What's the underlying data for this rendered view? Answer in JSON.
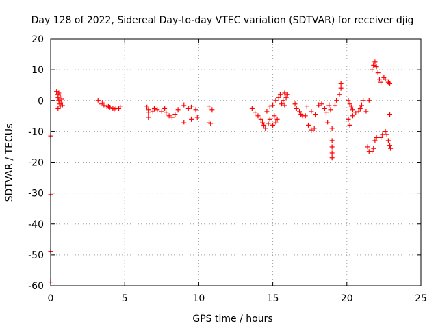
{
  "chart_data": {
    "type": "scatter",
    "title": "Day 128 of 2022, Sidereal Day-to-day VTEC variation (SDTVAR) for receiver djig",
    "xlabel": "GPS time / hours",
    "ylabel": "SDTVAR / TECUs",
    "xlim": [
      0,
      25
    ],
    "ylim": [
      -60,
      20
    ],
    "xticks": [
      "0",
      "5",
      "10",
      "15",
      "20",
      "25"
    ],
    "yticks": [
      "20",
      "10",
      "0",
      "-10",
      "-20",
      "-30",
      "-40",
      "-50",
      "-60"
    ],
    "grid": true,
    "marker": "plus",
    "color": "#ff0000",
    "series": [
      {
        "points": [
          [
            0.0,
            -11.5
          ],
          [
            0.0,
            -30.5
          ],
          [
            0.0,
            -49.0
          ],
          [
            0.0,
            -58.8
          ],
          [
            0.4,
            3.0
          ],
          [
            0.45,
            2.0
          ],
          [
            0.5,
            1.0
          ],
          [
            0.55,
            0.0
          ],
          [
            0.6,
            -1.0
          ],
          [
            0.65,
            -2.0
          ],
          [
            0.5,
            -2.5
          ],
          [
            0.7,
            -0.5
          ],
          [
            0.75,
            0.5
          ],
          [
            0.8,
            -1.5
          ],
          [
            0.55,
            2.5
          ],
          [
            0.65,
            1.5
          ],
          [
            3.2,
            0.0
          ],
          [
            3.4,
            -1.0
          ],
          [
            3.6,
            -1.5
          ],
          [
            3.8,
            -2.0
          ],
          [
            4.0,
            -2.2
          ],
          [
            4.2,
            -2.5
          ],
          [
            4.4,
            -2.5
          ],
          [
            4.6,
            -2.5
          ],
          [
            4.7,
            -2.0
          ],
          [
            3.5,
            -0.5
          ],
          [
            3.9,
            -1.8
          ],
          [
            4.3,
            -2.8
          ],
          [
            6.5,
            -2.0
          ],
          [
            6.6,
            -3.0
          ],
          [
            6.6,
            -4.0
          ],
          [
            6.6,
            -5.5
          ],
          [
            6.9,
            -3.5
          ],
          [
            7.2,
            -3.0
          ],
          [
            7.5,
            -3.5
          ],
          [
            7.8,
            -4.0
          ],
          [
            8.0,
            -5.0
          ],
          [
            8.2,
            -5.5
          ],
          [
            8.4,
            -4.5
          ],
          [
            8.6,
            -3.0
          ],
          [
            7.0,
            -2.5
          ],
          [
            7.7,
            -2.5
          ],
          [
            9.0,
            -1.5
          ],
          [
            9.0,
            -7.0
          ],
          [
            9.3,
            -2.5
          ],
          [
            9.5,
            -2.0
          ],
          [
            9.8,
            -3.0
          ],
          [
            9.9,
            -5.5
          ],
          [
            9.5,
            -6.0
          ],
          [
            10.7,
            -2.0
          ],
          [
            10.8,
            -7.5
          ],
          [
            10.9,
            -3.0
          ],
          [
            10.7,
            -7.0
          ],
          [
            13.6,
            -2.5
          ],
          [
            13.8,
            -4.0
          ],
          [
            14.0,
            -5.0
          ],
          [
            14.2,
            -6.0
          ],
          [
            14.3,
            -7.0
          ],
          [
            14.4,
            -8.0
          ],
          [
            14.5,
            -9.0
          ],
          [
            14.7,
            -7.5
          ],
          [
            14.8,
            -6.0
          ],
          [
            15.0,
            -8.0
          ],
          [
            15.2,
            -7.0
          ],
          [
            15.1,
            -5.0
          ],
          [
            15.3,
            -6.0
          ],
          [
            14.6,
            -3.5
          ],
          [
            14.8,
            -2.0
          ],
          [
            15.0,
            -1.5
          ],
          [
            15.2,
            0.0
          ],
          [
            15.4,
            1.0
          ],
          [
            15.5,
            2.0
          ],
          [
            15.8,
            2.5
          ],
          [
            15.9,
            1.0
          ],
          [
            15.7,
            0.0
          ],
          [
            15.8,
            -1.5
          ],
          [
            16.0,
            2.0
          ],
          [
            15.6,
            -1.0
          ],
          [
            16.5,
            -1.0
          ],
          [
            16.6,
            -2.5
          ],
          [
            16.8,
            -3.5
          ],
          [
            16.9,
            -4.5
          ],
          [
            17.0,
            -5.0
          ],
          [
            17.2,
            -5.0
          ],
          [
            17.4,
            -8.0
          ],
          [
            17.6,
            -9.5
          ],
          [
            17.8,
            -9.0
          ],
          [
            17.3,
            -2.0
          ],
          [
            17.6,
            -3.5
          ],
          [
            17.9,
            -4.5
          ],
          [
            18.1,
            -1.5
          ],
          [
            18.3,
            -1.0
          ],
          [
            18.5,
            -2.5
          ],
          [
            18.6,
            -4.0
          ],
          [
            18.7,
            -7.0
          ],
          [
            18.8,
            -1.5
          ],
          [
            18.9,
            -3.0
          ],
          [
            19.0,
            -9.0
          ],
          [
            19.0,
            -13.0
          ],
          [
            19.0,
            -15.0
          ],
          [
            19.0,
            -17.0
          ],
          [
            19.0,
            -18.5
          ],
          [
            19.2,
            -1.5
          ],
          [
            19.3,
            0.0
          ],
          [
            19.5,
            2.0
          ],
          [
            19.6,
            4.0
          ],
          [
            19.6,
            5.5
          ],
          [
            20.1,
            0.0
          ],
          [
            20.2,
            -1.0
          ],
          [
            20.3,
            -2.0
          ],
          [
            20.4,
            -3.0
          ],
          [
            20.1,
            -6.0
          ],
          [
            20.2,
            -8.0
          ],
          [
            20.4,
            -5.0
          ],
          [
            20.6,
            -4.0
          ],
          [
            20.8,
            -3.5
          ],
          [
            20.9,
            -2.5
          ],
          [
            21.0,
            -1.5
          ],
          [
            21.1,
            0.0
          ],
          [
            21.3,
            -3.5
          ],
          [
            21.5,
            0.0
          ],
          [
            21.4,
            -15.0
          ],
          [
            21.5,
            -16.5
          ],
          [
            21.7,
            -16.5
          ],
          [
            21.8,
            -15.5
          ],
          [
            21.9,
            -13.0
          ],
          [
            22.0,
            -12.0
          ],
          [
            21.7,
            10.0
          ],
          [
            21.8,
            11.5
          ],
          [
            21.9,
            12.5
          ],
          [
            22.0,
            11.0
          ],
          [
            22.1,
            9.0
          ],
          [
            22.2,
            7.0
          ],
          [
            22.3,
            6.0
          ],
          [
            22.5,
            7.5
          ],
          [
            22.6,
            7.0
          ],
          [
            22.8,
            6.0
          ],
          [
            22.9,
            5.5
          ],
          [
            22.3,
            -12.0
          ],
          [
            22.4,
            -11.0
          ],
          [
            22.6,
            -10.0
          ],
          [
            22.7,
            -11.0
          ],
          [
            22.8,
            -13.0
          ],
          [
            22.9,
            -14.5
          ],
          [
            22.95,
            -15.5
          ],
          [
            22.9,
            -4.5
          ]
        ]
      }
    ]
  }
}
